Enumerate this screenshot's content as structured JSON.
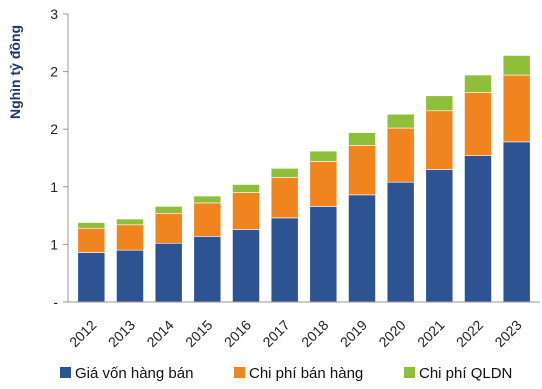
{
  "chart_data": {
    "type": "bar",
    "stacked": true,
    "ylabel": "Nghìn tỷ đồng",
    "ytick_labels": [
      "-",
      "1",
      "1",
      "2",
      "2",
      "3"
    ],
    "ylim": [
      0,
      2.5
    ],
    "categories": [
      "2012",
      "2013",
      "2014",
      "2015",
      "2016",
      "2017",
      "2018",
      "2019",
      "2020",
      "2021",
      "2022",
      "2023"
    ],
    "series": [
      {
        "name": "Giá vốn hàng bán",
        "color": "#2e5393",
        "values": [
          0.43,
          0.45,
          0.51,
          0.57,
          0.63,
          0.73,
          0.83,
          0.93,
          1.04,
          1.15,
          1.27,
          1.39
        ]
      },
      {
        "name": "Chi phí bán hàng",
        "color": "#f0841e",
        "values": [
          0.21,
          0.22,
          0.26,
          0.29,
          0.32,
          0.35,
          0.39,
          0.43,
          0.47,
          0.51,
          0.55,
          0.58
        ]
      },
      {
        "name": "Chi phí QLDN",
        "color": "#8fbf3a",
        "values": [
          0.05,
          0.05,
          0.06,
          0.06,
          0.07,
          0.08,
          0.09,
          0.11,
          0.12,
          0.13,
          0.15,
          0.17
        ]
      }
    ],
    "legend_position": "bottom",
    "grid": false
  }
}
